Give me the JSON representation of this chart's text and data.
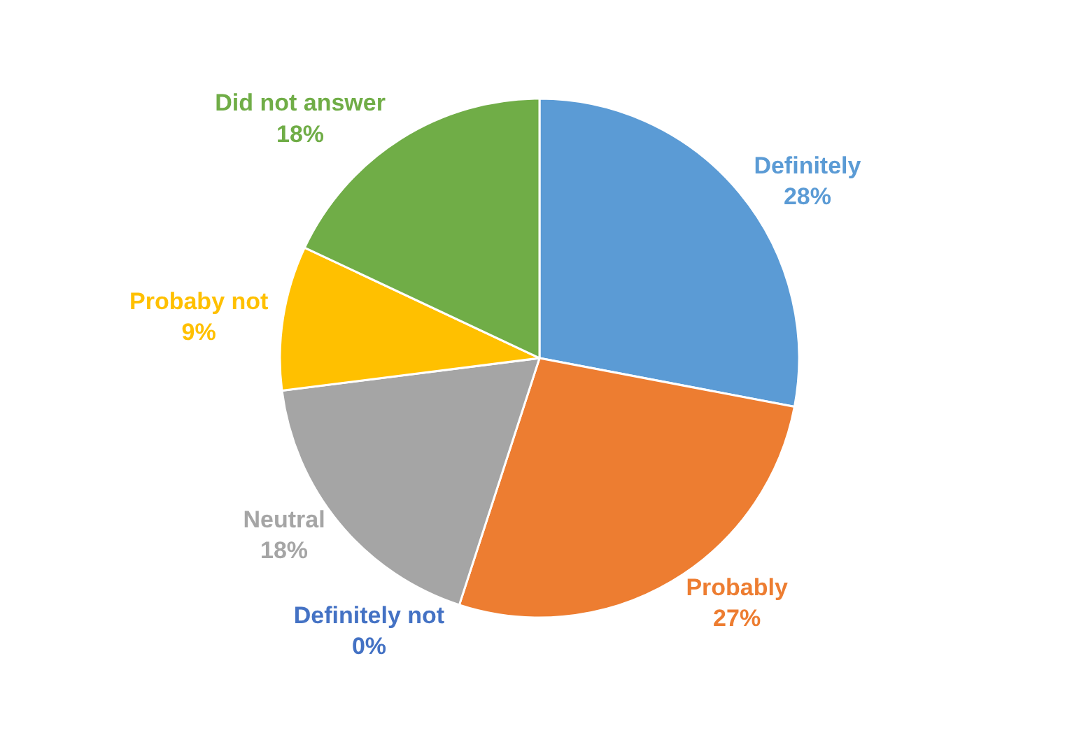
{
  "chart_data": {
    "type": "pie",
    "categories": [
      "Definitely",
      "Probably",
      "Definitely not",
      "Neutral",
      "Probaby not",
      "Did not answer"
    ],
    "values": [
      28,
      27,
      0,
      18,
      9,
      18
    ],
    "value_labels": [
      "28%",
      "27%",
      "0%",
      "18%",
      "9%",
      "18%"
    ],
    "colors": [
      "#5b9bd5",
      "#ed7d31",
      "#4472c4",
      "#a5a5a5",
      "#ffc000",
      "#70ad47"
    ],
    "legend": false
  }
}
